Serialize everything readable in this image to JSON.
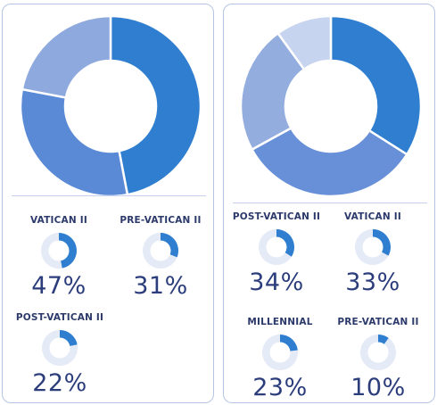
{
  "chart_data": [
    {
      "type": "pie",
      "donut": true,
      "categories": [
        "VATICAN II",
        "PRE-VATICAN II",
        "POST-VATICAN II"
      ],
      "values": [
        47,
        31,
        22
      ],
      "labels": [
        "47%",
        "31%",
        "22%"
      ],
      "colors": [
        "#2f7ed0",
        "#5a8ad6",
        "#8ea9de"
      ],
      "small_colors": [
        "#2f7ed0",
        "#2f7ed0",
        "#2f7ed0"
      ]
    },
    {
      "type": "pie",
      "donut": true,
      "categories": [
        "POST-VATICAN II",
        "VATICAN II",
        "MILLENNIAL",
        "PRE-VATICAN II"
      ],
      "values": [
        34,
        33,
        23,
        10
      ],
      "labels": [
        "34%",
        "33%",
        "23%",
        "10%"
      ],
      "colors": [
        "#2f7ed0",
        "#6890d8",
        "#93addf",
        "#c7d4ef"
      ],
      "small_colors": [
        "#2f7ed0",
        "#2f7ed0",
        "#2f7ed0",
        "#2f7ed0"
      ]
    }
  ],
  "track_color": "#e4eaf6"
}
